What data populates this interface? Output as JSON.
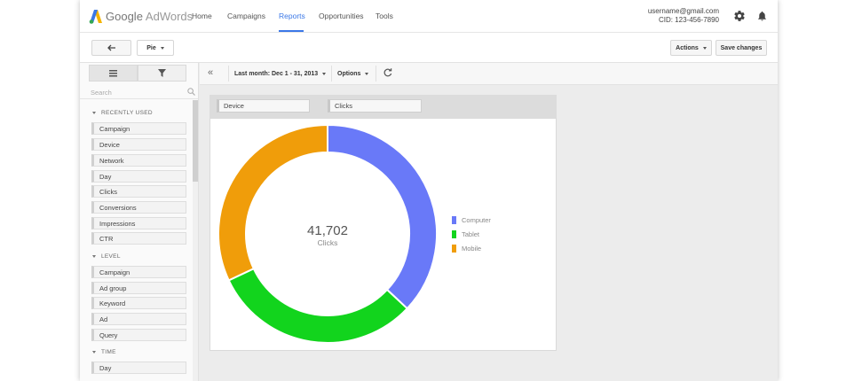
{
  "logo": {
    "google": "Google",
    "product": "AdWords"
  },
  "nav": {
    "items": [
      {
        "label": "Home"
      },
      {
        "label": "Campaigns"
      },
      {
        "label": "Reports"
      },
      {
        "label": "Opportunities"
      },
      {
        "label": "Tools"
      }
    ],
    "active": "Reports"
  },
  "account": {
    "email": "username@gmail.com",
    "cid": "CID: 123-456-7890"
  },
  "icons": {
    "gear": "gear-icon",
    "bell": "bell-icon",
    "back": "back-arrow-icon",
    "table": "table-icon",
    "filter": "filter-icon",
    "search": "search-icon",
    "refresh": "refresh-icon",
    "collapse": "double-chevron-left-icon"
  },
  "toolbar": {
    "chart_type": "Pie",
    "actions_label": "Actions",
    "save_label": "Save changes"
  },
  "left_panel": {
    "search_placeholder": "Search",
    "sections": [
      {
        "title": "RECENTLY USED",
        "items": [
          "Campaign",
          "Device",
          "Network",
          "Day",
          "Clicks",
          "Conversions",
          "Impressions",
          "CTR"
        ]
      },
      {
        "title": "LEVEL",
        "items": [
          "Campaign",
          "Ad group",
          "Keyword",
          "Ad",
          "Query"
        ]
      },
      {
        "title": "TIME",
        "items": [
          "Day"
        ]
      }
    ]
  },
  "content_bar": {
    "date_range": "Last month: Dec 1 - 31, 2013",
    "options_label": "Options",
    "collapse_glyph": "«"
  },
  "fields": {
    "dimension": "Device",
    "metric": "Clicks"
  },
  "chart_data": {
    "type": "pie",
    "donut": true,
    "center_value": "41,702",
    "center_label": "Clicks",
    "categories": [
      "Computer",
      "Tablet",
      "Mobile"
    ],
    "values": [
      15429,
      12928,
      13345
    ],
    "colors": [
      "#6979f8",
      "#12d41d",
      "#f09d0a"
    ],
    "legend_position": "right"
  }
}
